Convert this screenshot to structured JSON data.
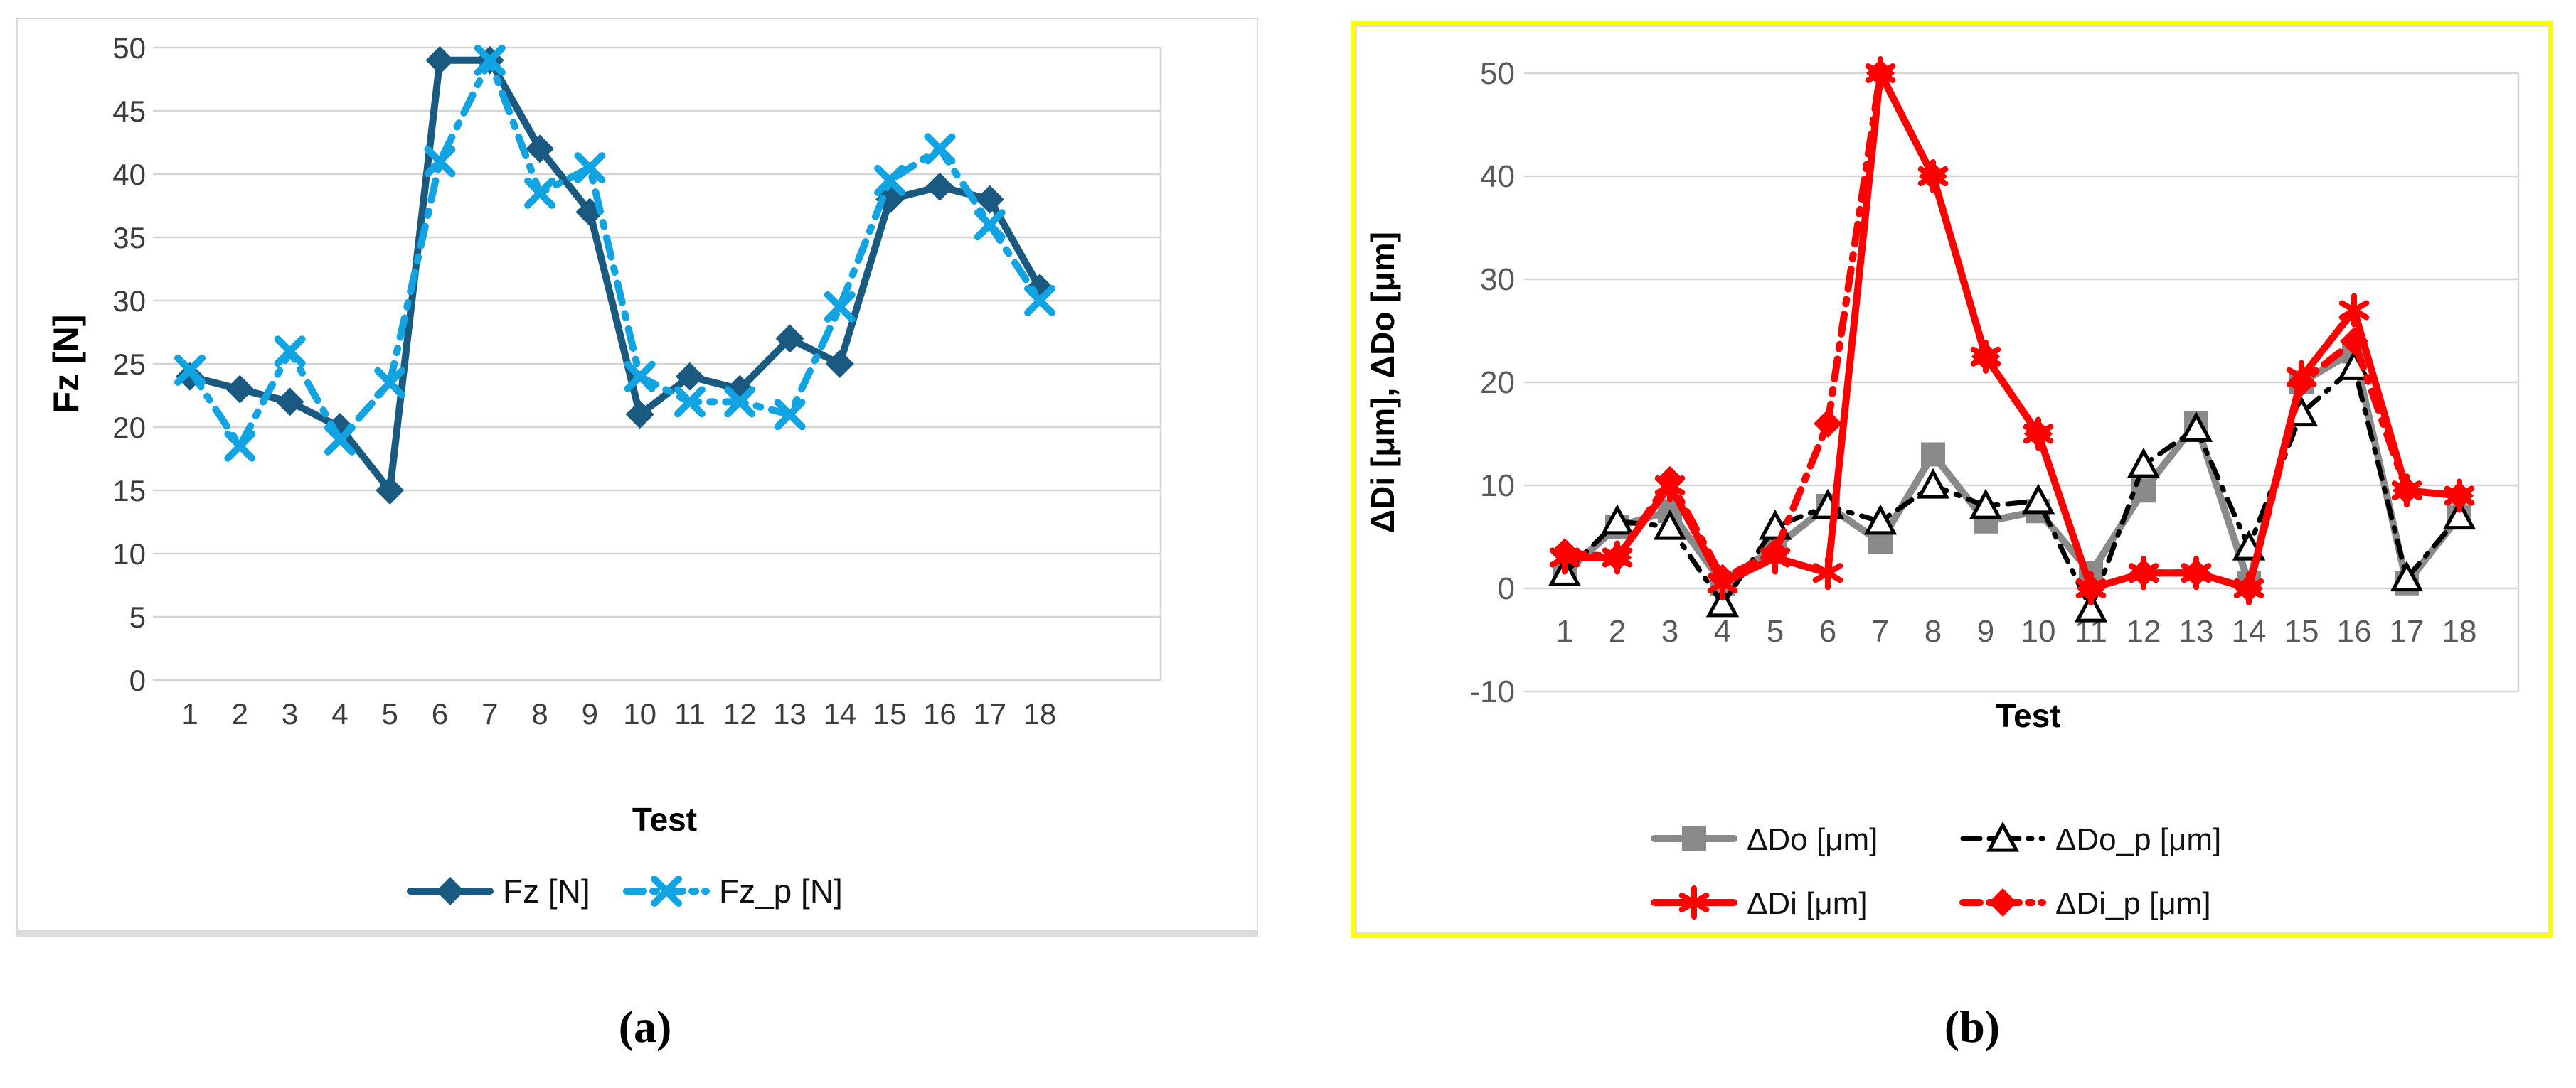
{
  "figure": {
    "caption_a": "(a)",
    "caption_b": "(b)"
  },
  "colors": {
    "fz_dark_blue": "#1A5980",
    "fzp_light_blue": "#12A3E3",
    "delta_do_gray": "#8A8A8A",
    "delta_dop_black": "#000000",
    "delta_di_red": "#FF0000",
    "delta_dip_red": "#FF0000",
    "gridline": "#D5D5D5",
    "chart_border": "#D9D9D9",
    "highlight_border_yellow": "#FFFF00",
    "tick_text_a": "#3C3C3C",
    "tick_text_b": "#595959"
  },
  "chart_data": [
    {
      "id": "a",
      "type": "line",
      "title": "",
      "xlabel": "Test",
      "ylabel": "Fz [N]",
      "ylim": [
        0,
        50
      ],
      "ytick_step": 5,
      "yticks": [
        0,
        5,
        10,
        15,
        20,
        25,
        30,
        35,
        40,
        45,
        50
      ],
      "grid": true,
      "legend_position": "bottom",
      "categories": [
        1,
        2,
        3,
        4,
        5,
        6,
        7,
        8,
        9,
        10,
        11,
        12,
        13,
        14,
        15,
        16,
        17,
        18
      ],
      "series": [
        {
          "name": "Fz [N]",
          "color": "#1A5980",
          "marker": "diamond",
          "line": "solid",
          "values": [
            24,
            23,
            22,
            20,
            15,
            49,
            49,
            42,
            37,
            21,
            24,
            23,
            27,
            25,
            38,
            39,
            38,
            31
          ]
        },
        {
          "name": "Fz_p [N]",
          "color": "#12A3E3",
          "marker": "x",
          "line": "dashdot",
          "values": [
            24.5,
            18.5,
            26,
            19,
            23.5,
            41,
            49,
            38.5,
            40.5,
            24,
            22,
            22,
            21,
            29.5,
            39.5,
            42,
            36,
            30
          ]
        }
      ]
    },
    {
      "id": "b",
      "type": "line",
      "title": "",
      "xlabel": "Test",
      "ylabel": "ΔDi [μm], ΔDo [μm]",
      "ylim": [
        -10,
        50
      ],
      "ytick_step": 10,
      "yticks": [
        -10,
        0,
        10,
        20,
        30,
        40,
        50
      ],
      "grid": true,
      "legend_position": "bottom",
      "categories": [
        1,
        2,
        3,
        4,
        5,
        6,
        7,
        8,
        9,
        10,
        11,
        12,
        13,
        14,
        15,
        16,
        17,
        18
      ],
      "series": [
        {
          "name": "ΔDo [μm]",
          "color": "#8A8A8A",
          "marker": "square",
          "line": "solid",
          "values": [
            1.5,
            6,
            7.5,
            0.5,
            4,
            8,
            4.5,
            13,
            6.5,
            7.5,
            1.5,
            9.5,
            16,
            0.5,
            20,
            23,
            0.5,
            7
          ]
        },
        {
          "name": "ΔDo_p [μm]",
          "color": "#000000",
          "marker": "triangle-open",
          "line": "dashdot",
          "values": [
            1.5,
            6.5,
            6,
            -1.5,
            6,
            8,
            6.5,
            10,
            8,
            8.5,
            -2,
            12,
            15.5,
            4,
            17,
            21.5,
            1,
            7
          ]
        },
        {
          "name": "ΔDi [μm]",
          "color": "#FF0000",
          "marker": "asterisk",
          "line": "solid",
          "values": [
            3,
            3,
            10,
            0.5,
            3,
            1.5,
            50,
            40,
            22.5,
            15,
            0,
            1.5,
            1.5,
            0,
            20.5,
            27,
            9.5,
            9
          ]
        },
        {
          "name": "ΔDi_p [μm]",
          "color": "#FF0000",
          "marker": "diamond",
          "line": "dashdot",
          "values": [
            3.5,
            3,
            10.5,
            1,
            3.5,
            16,
            50,
            40,
            22.5,
            15,
            0,
            1.5,
            1.5,
            0,
            20,
            24,
            9.5,
            9
          ]
        }
      ]
    }
  ]
}
